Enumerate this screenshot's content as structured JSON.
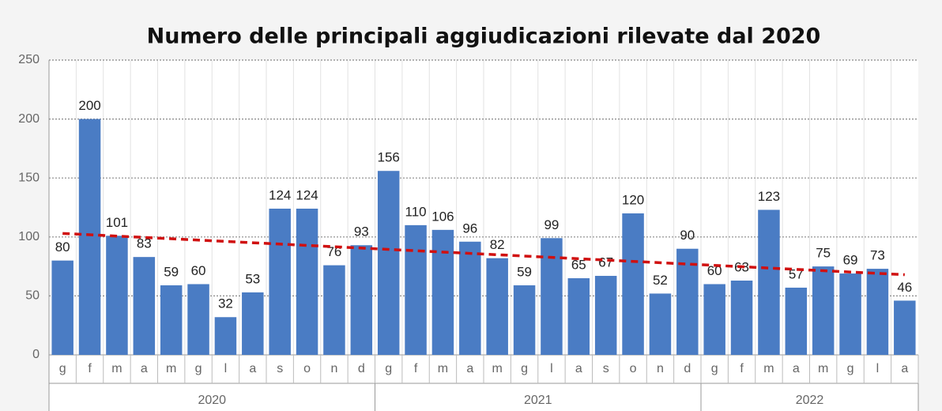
{
  "chart_data": {
    "type": "bar",
    "title": "Numero delle principali aggiudicazioni rilevate dal 2020",
    "groups": [
      {
        "name": "2020",
        "categories": [
          "g",
          "f",
          "m",
          "a",
          "m",
          "g",
          "l",
          "a",
          "s",
          "o",
          "n",
          "d"
        ],
        "values": [
          80,
          200,
          101,
          83,
          59,
          60,
          32,
          53,
          124,
          124,
          76,
          93
        ]
      },
      {
        "name": "2021",
        "categories": [
          "g",
          "f",
          "m",
          "a",
          "m",
          "g",
          "l",
          "a",
          "s",
          "o",
          "n",
          "d"
        ],
        "values": [
          156,
          110,
          106,
          96,
          82,
          59,
          99,
          65,
          67,
          120,
          52,
          90
        ]
      },
      {
        "name": "2022",
        "categories": [
          "g",
          "f",
          "m",
          "a",
          "m",
          "g",
          "l",
          "a"
        ],
        "values": [
          60,
          63,
          123,
          57,
          75,
          69,
          73,
          46
        ]
      }
    ],
    "color": "#4a7cc4",
    "trendline": {
      "start": 103,
      "end": 68,
      "color": "#d01010"
    },
    "ylim": [
      0,
      250
    ],
    "yticks": [
      0,
      50,
      100,
      150,
      200,
      250
    ],
    "grid": true
  }
}
